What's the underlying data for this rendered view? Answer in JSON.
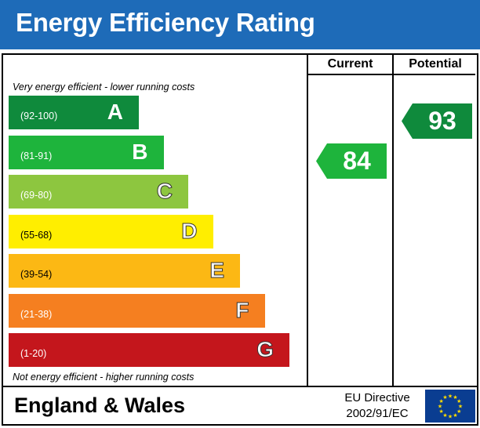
{
  "title": "Energy Efficiency Rating",
  "columns": {
    "current": "Current",
    "potential": "Potential"
  },
  "top_note": "Very energy efficient - lower running costs",
  "bottom_note": "Not energy efficient - higher running costs",
  "footer": {
    "region": "England & Wales",
    "directive_line1": "EU Directive",
    "directive_line2": "2002/91/EC"
  },
  "flag_icon": "eu-flag-icon",
  "chart_data": {
    "type": "bar",
    "bands": [
      {
        "letter": "A",
        "range": "(92-100)",
        "min": 92,
        "max": 100,
        "color": "#0f8a3c"
      },
      {
        "letter": "B",
        "range": "(81-91)",
        "min": 81,
        "max": 91,
        "color": "#1eb43c"
      },
      {
        "letter": "C",
        "range": "(69-80)",
        "min": 69,
        "max": 80,
        "color": "#8dc63f"
      },
      {
        "letter": "D",
        "range": "(55-68)",
        "min": 55,
        "max": 68,
        "color": "#ffee00"
      },
      {
        "letter": "E",
        "range": "(39-54)",
        "min": 39,
        "max": 54,
        "color": "#fcb814"
      },
      {
        "letter": "F",
        "range": "(21-38)",
        "min": 21,
        "max": 38,
        "color": "#f57f20"
      },
      {
        "letter": "G",
        "range": "(1-20)",
        "min": 1,
        "max": 20,
        "color": "#c4161c"
      }
    ],
    "current": {
      "value": 84,
      "band": "B",
      "color": "#1eb43c"
    },
    "potential": {
      "value": 93,
      "band": "A",
      "color": "#0f8a3c"
    }
  }
}
